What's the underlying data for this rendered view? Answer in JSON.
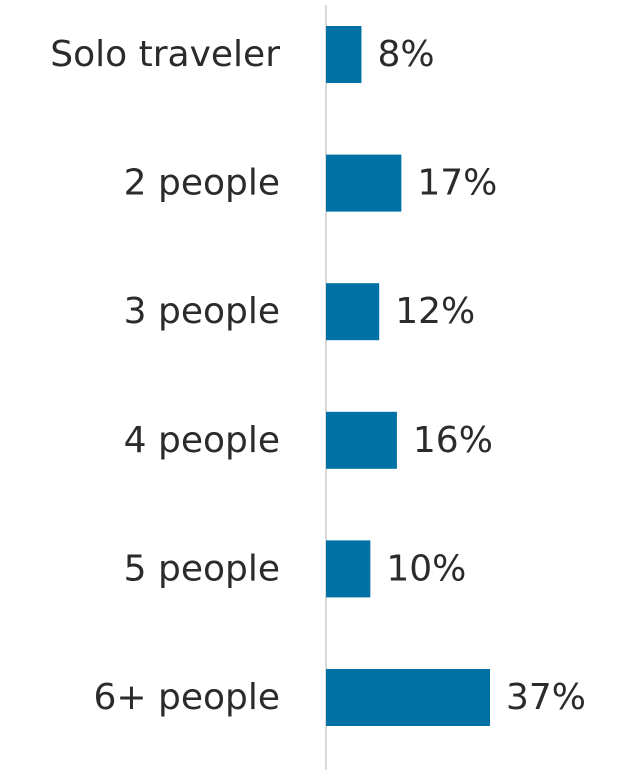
{
  "chart_data": {
    "type": "bar",
    "orientation": "horizontal",
    "categories": [
      "Solo traveler",
      "2 people",
      "3 people",
      "4 people",
      "5 people",
      "6+ people"
    ],
    "values": [
      8,
      17,
      12,
      16,
      10,
      37
    ],
    "value_labels": [
      "8%",
      "17%",
      "12%",
      "16%",
      "10%",
      "37%"
    ],
    "title": "",
    "xlabel": "",
    "ylabel": "",
    "xlim": [
      0,
      37
    ],
    "grid": false,
    "legend": "none",
    "bar_color": "#0071a4",
    "axis_color": "#d9d9d9"
  }
}
